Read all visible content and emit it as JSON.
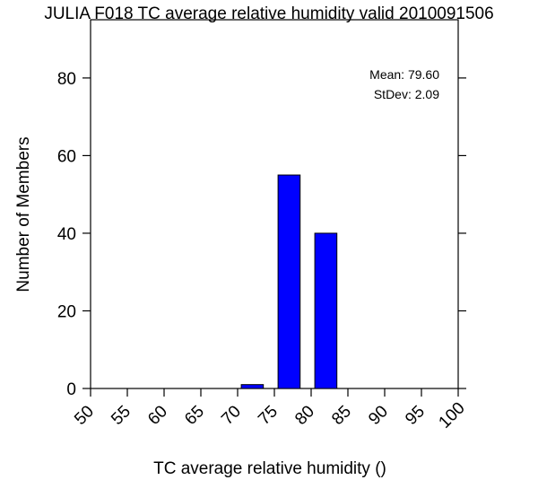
{
  "chart_data": {
    "type": "bar",
    "title": "JULIA F018 TC average relative humidity valid 2010091506",
    "xlabel": "TC average relative humidity ()",
    "ylabel": "Number of Members",
    "xlim": [
      50,
      100
    ],
    "ylim": [
      0,
      95
    ],
    "x_ticks": [
      "50",
      "55",
      "60",
      "65",
      "70",
      "75",
      "80",
      "85",
      "90",
      "95",
      "100"
    ],
    "y_ticks": [
      "0",
      "20",
      "40",
      "60",
      "80"
    ],
    "bins": [
      {
        "start": 70.5,
        "end": 73.5,
        "value": 1
      },
      {
        "start": 75.5,
        "end": 78.5,
        "value": 55
      },
      {
        "start": 80.5,
        "end": 83.5,
        "value": 40
      }
    ],
    "bar_color": "#0000ff",
    "grid": false,
    "stats": {
      "mean_text": "Mean: 79.60",
      "stdev_text": "StDev: 2.09"
    }
  }
}
